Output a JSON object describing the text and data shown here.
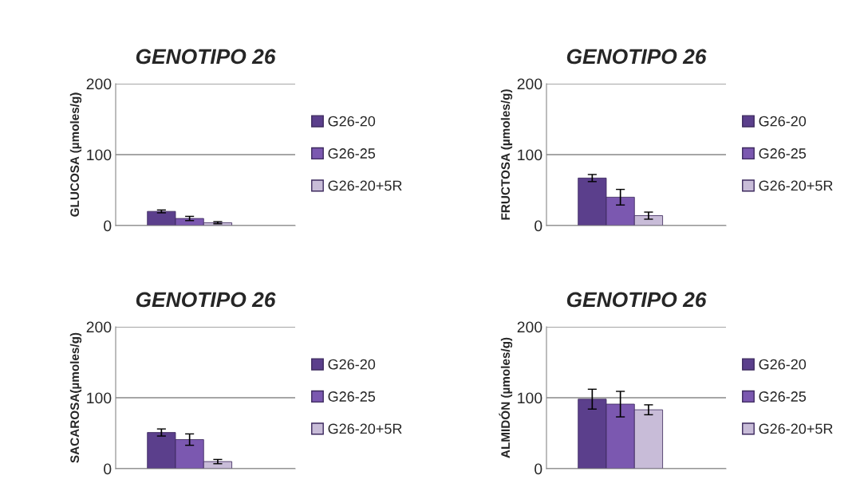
{
  "chart_data": [
    {
      "type": "bar",
      "title": "GENOTIPO 26",
      "ylabel": "GLUCOSA (µmoles/g)",
      "categories": [
        null
      ],
      "ylim": [
        0,
        200
      ],
      "yticks": [
        0,
        100,
        200
      ],
      "grid": "y",
      "legend": "right",
      "series": [
        {
          "name": "G26-20",
          "color": "#5b3f8c",
          "values": [
            20
          ],
          "errors": [
            2
          ]
        },
        {
          "name": "G26-25",
          "color": "#7b58b0",
          "values": [
            10
          ],
          "errors": [
            3
          ]
        },
        {
          "name": "G26-20+5R",
          "color": "#c8bcd8",
          "values": [
            4
          ],
          "errors": [
            1.5
          ]
        }
      ]
    },
    {
      "type": "bar",
      "title": "GENOTIPO 26",
      "ylabel": "FRUCTOSA (µmoles/g)",
      "categories": [
        null
      ],
      "ylim": [
        0,
        200
      ],
      "yticks": [
        0,
        100,
        200
      ],
      "grid": "y",
      "legend": "right",
      "series": [
        {
          "name": "G26-20",
          "color": "#5b3f8c",
          "values": [
            67
          ],
          "errors": [
            5
          ]
        },
        {
          "name": "G26-25",
          "color": "#7b58b0",
          "values": [
            40
          ],
          "errors": [
            11
          ]
        },
        {
          "name": "G26-20+5R",
          "color": "#c8bcd8",
          "values": [
            14
          ],
          "errors": [
            5
          ]
        }
      ]
    },
    {
      "type": "bar",
      "title": "GENOTIPO 26",
      "ylabel": "SACAROSA(µmoles/g)",
      "categories": [
        null
      ],
      "ylim": [
        0,
        200
      ],
      "yticks": [
        0,
        100,
        200
      ],
      "grid": "y",
      "legend": "right",
      "series": [
        {
          "name": "G26-20",
          "color": "#5b3f8c",
          "values": [
            51
          ],
          "errors": [
            5
          ]
        },
        {
          "name": "G26-25",
          "color": "#7b58b0",
          "values": [
            41
          ],
          "errors": [
            8
          ]
        },
        {
          "name": "G26-20+5R",
          "color": "#c8bcd8",
          "values": [
            10
          ],
          "errors": [
            3
          ]
        }
      ]
    },
    {
      "type": "bar",
      "title": "GENOTIPO 26",
      "ylabel": "ALMIDÓN (µmoles/g)",
      "categories": [
        null
      ],
      "ylim": [
        0,
        200
      ],
      "yticks": [
        0,
        100,
        200
      ],
      "grid": "y",
      "legend": "right",
      "series": [
        {
          "name": "G26-20",
          "color": "#5b3f8c",
          "values": [
            98
          ],
          "errors": [
            14
          ]
        },
        {
          "name": "G26-25",
          "color": "#7b58b0",
          "values": [
            91
          ],
          "errors": [
            18
          ]
        },
        {
          "name": "G26-20+5R",
          "color": "#c8bcd8",
          "values": [
            83
          ],
          "errors": [
            7
          ]
        }
      ]
    }
  ]
}
